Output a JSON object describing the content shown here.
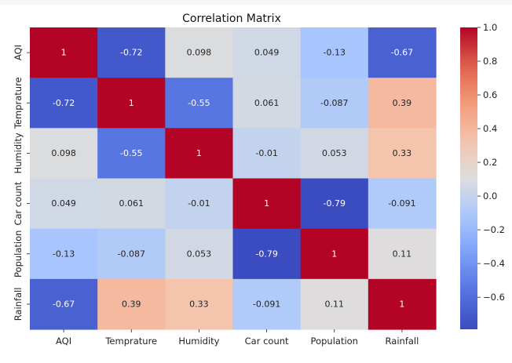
{
  "chart_data": {
    "type": "heatmap",
    "title": "Correlation Matrix",
    "row_labels": [
      "AQI",
      "Temprature",
      "Humidity",
      "Car count",
      "Population",
      "Rainfall"
    ],
    "col_labels": [
      "AQI",
      "Temprature",
      "Humidity",
      "Car count",
      "Population",
      "Rainfall"
    ],
    "values": [
      [
        1,
        -0.72,
        0.098,
        0.049,
        -0.13,
        -0.67
      ],
      [
        -0.72,
        1,
        -0.55,
        0.061,
        -0.087,
        0.39
      ],
      [
        0.098,
        -0.55,
        1,
        -0.01,
        0.053,
        0.33
      ],
      [
        0.049,
        0.061,
        -0.01,
        1,
        -0.79,
        -0.091
      ],
      [
        -0.13,
        -0.087,
        0.053,
        -0.79,
        1,
        0.11
      ],
      [
        -0.67,
        0.39,
        0.33,
        -0.091,
        0.11,
        1
      ]
    ],
    "annotations": [
      [
        "1",
        "-0.72",
        "0.098",
        "0.049",
        "-0.13",
        "-0.67"
      ],
      [
        "-0.72",
        "1",
        "-0.55",
        "0.061",
        "-0.087",
        "0.39"
      ],
      [
        "0.098",
        "-0.55",
        "1",
        "-0.01",
        "0.053",
        "0.33"
      ],
      [
        "0.049",
        "0.061",
        "-0.01",
        "1",
        "-0.79",
        "-0.091"
      ],
      [
        "-0.13",
        "-0.087",
        "0.053",
        "-0.79",
        "1",
        "0.11"
      ],
      [
        "-0.67",
        "0.39",
        "0.33",
        "-0.091",
        "0.11",
        "1"
      ]
    ],
    "colormap": "coolwarm",
    "colorbar": {
      "vmin": -0.79,
      "vmax": 1.0,
      "ticks": [
        1.0,
        0.8,
        0.6,
        0.4,
        0.2,
        0.0,
        -0.2,
        -0.4,
        -0.6
      ],
      "tick_labels": [
        "1.0",
        "0.8",
        "0.6",
        "0.4",
        "0.2",
        "0.0",
        "−0.2",
        "−0.4",
        "−0.6"
      ]
    },
    "grid": false
  }
}
